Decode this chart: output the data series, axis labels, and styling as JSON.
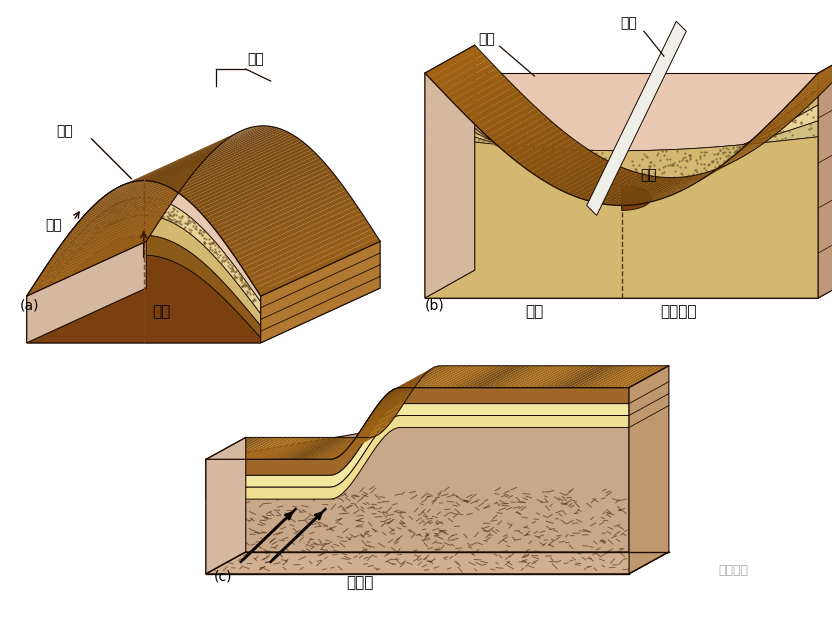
{
  "bg_color": "#ffffff",
  "label_a": "(a)",
  "label_b": "(b)",
  "label_c": "(c)",
  "text_a": "背斜",
  "text_b1": "向斜",
  "text_b2": "轴面轨迹",
  "text_c": "单斜层",
  "text_zhou_a": "轴面",
  "text_shu_a": "枢纽",
  "text_yi_a": "翼部",
  "text_zhou_b": "轴面",
  "text_shu_b": "枢纽",
  "text_yi_b": "翼部",
  "watermark": "桔灯勘探",
  "c_outline": "#1A0A00",
  "c_brown_top": "#8B5A1A",
  "c_brown_side": "#A06828",
  "c_sand_dot": "#D4B870",
  "c_cream": "#F0E0A0",
  "c_cream2": "#EED890",
  "c_pink_outer": "#E8C8B0",
  "c_pink_side": "#D4B8A0",
  "c_dark_core": "#7A4010",
  "c_rock_base": "#C8A888",
  "c_gold_rough": "#C8941A"
}
